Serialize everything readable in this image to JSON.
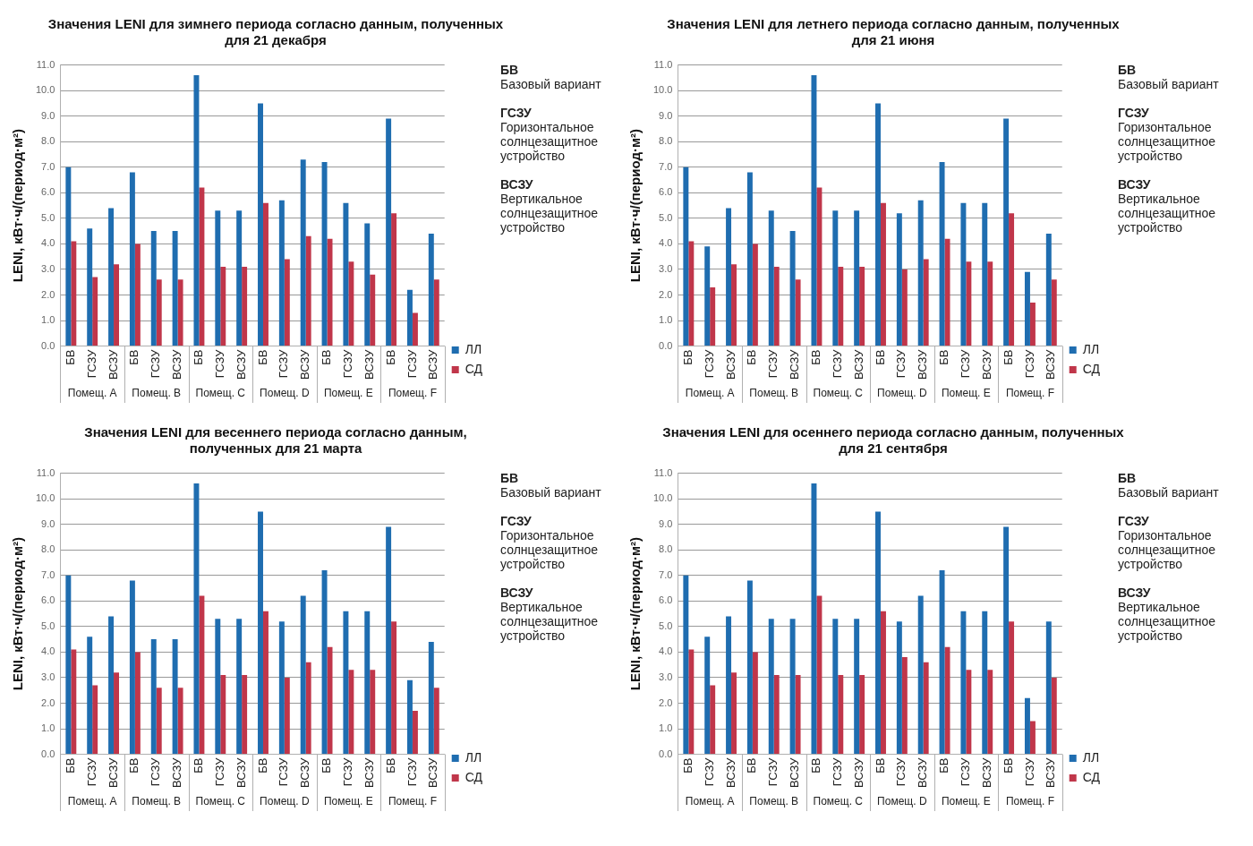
{
  "chart_data": [
    {
      "type": "bar",
      "title": "Значения LENI для зимнего периода согласно данным, полученных для 21 декабря",
      "ylabel": "LENI, кВт·ч/(период·м²)",
      "categories": [
        "БВ",
        "ГСЗУ",
        "ВСЗУ",
        "БВ",
        "ГСЗУ",
        "ВСЗУ",
        "БВ",
        "ГСЗУ",
        "ВСЗУ",
        "БВ",
        "ГСЗУ",
        "ВСЗУ",
        "БВ",
        "ГСЗУ",
        "ВСЗУ",
        "БВ",
        "ГСЗУ",
        "ВСЗУ"
      ],
      "series": [
        {
          "name": "ЛЛ",
          "color": "#1f6db0",
          "values": [
            7.0,
            4.6,
            5.4,
            6.8,
            4.5,
            4.5,
            10.6,
            5.3,
            5.3,
            9.5,
            5.7,
            7.3,
            7.2,
            5.6,
            4.8,
            8.9,
            2.2,
            4.4
          ]
        },
        {
          "name": "СД",
          "color": "#c0364a",
          "values": [
            4.1,
            2.7,
            3.2,
            4.0,
            2.6,
            2.6,
            6.2,
            3.1,
            3.1,
            5.6,
            3.4,
            4.3,
            4.2,
            3.3,
            2.8,
            5.2,
            1.3,
            2.6
          ]
        }
      ],
      "ylim": [
        0,
        11
      ],
      "yticks": [
        {
          "value": 0,
          "label": "0.0"
        },
        {
          "value": 1,
          "label": "1.0"
        },
        {
          "value": 2,
          "label": "2.0"
        },
        {
          "value": 3,
          "label": "3.0"
        },
        {
          "value": 4,
          "label": "4.0"
        },
        {
          "value": 5,
          "label": "5.0"
        },
        {
          "value": 6,
          "label": "6.0"
        },
        {
          "value": 7,
          "label": "7.0"
        },
        {
          "value": 8,
          "label": "8.0"
        },
        {
          "value": 9,
          "label": "9.0"
        },
        {
          "value": 10,
          "label": "10.0"
        },
        {
          "value": 11,
          "label": "11.0"
        }
      ],
      "grid": "y",
      "legend": "bottom right",
      "annotations": [
        "Помещ. A",
        "Помещ. B",
        "Помещ. C",
        "Помещ. D",
        "Помещ. E",
        "Помещ. F",
        "БВ\nБазовый вариант",
        "ГСЗУ\nГоризонтальное солнцезащитное устройство",
        "ВСЗУ\nВертикальное солнцезащитное устройство"
      ]
    },
    {
      "type": "bar",
      "title": "Значения LENI для летнего периода согласно данным, полученных для 21 июня",
      "ylabel": "LENI, кВт·ч/(период·м²)",
      "categories": [
        "БВ",
        "ГСЗУ",
        "ВСЗУ",
        "БВ",
        "ГСЗУ",
        "ВСЗУ",
        "БВ",
        "ГСЗУ",
        "ВСЗУ",
        "БВ",
        "ГСЗУ",
        "ВСЗУ",
        "БВ",
        "ГСЗУ",
        "ВСЗУ",
        "БВ",
        "ГСЗУ",
        "ВСЗУ"
      ],
      "series": [
        {
          "name": "ЛЛ",
          "color": "#1f6db0",
          "values": [
            7.0,
            3.9,
            5.4,
            6.8,
            5.3,
            4.5,
            10.6,
            5.3,
            5.3,
            9.5,
            5.2,
            5.7,
            7.2,
            5.6,
            5.6,
            8.9,
            2.9,
            4.4
          ]
        },
        {
          "name": "СД",
          "color": "#c0364a",
          "values": [
            4.1,
            2.3,
            3.2,
            4.0,
            3.1,
            2.6,
            6.2,
            3.1,
            3.1,
            5.6,
            3.0,
            3.4,
            4.2,
            3.3,
            3.3,
            5.2,
            1.7,
            2.6
          ]
        }
      ],
      "ylim": [
        0,
        11
      ],
      "yticks": [
        {
          "value": 0,
          "label": "0.0"
        },
        {
          "value": 1,
          "label": "1.0"
        },
        {
          "value": 2,
          "label": "2.0"
        },
        {
          "value": 3,
          "label": "3.0"
        },
        {
          "value": 4,
          "label": "4.0"
        },
        {
          "value": 5,
          "label": "5.0"
        },
        {
          "value": 6,
          "label": "6.0"
        },
        {
          "value": 7,
          "label": "7.0"
        },
        {
          "value": 8,
          "label": "8.0"
        },
        {
          "value": 9,
          "label": "9.0"
        },
        {
          "value": 10,
          "label": "10.0"
        },
        {
          "value": 11,
          "label": "11.0"
        }
      ],
      "grid": "y",
      "legend": "bottom right",
      "annotations": [
        "Помещ. A",
        "Помещ. B",
        "Помещ. C",
        "Помещ. D",
        "Помещ. E",
        "Помещ. F",
        "БВ\nБазовый вариант",
        "ГСЗУ\nГоризонтальное солнцезащитное устройство",
        "ВСЗУ\nВертикальное солнцезащитное устройство"
      ]
    },
    {
      "type": "bar",
      "title": "Значения LENI для весеннего периода согласно данным, полученных для 21 марта",
      "ylabel": "LENI, кВт·ч/(период·м²)",
      "categories": [
        "БВ",
        "ГСЗУ",
        "ВСЗУ",
        "БВ",
        "ГСЗУ",
        "ВСЗУ",
        "БВ",
        "ГСЗУ",
        "ВСЗУ",
        "БВ",
        "ГСЗУ",
        "ВСЗУ",
        "БВ",
        "ГСЗУ",
        "ВСЗУ",
        "БВ",
        "ГСЗУ",
        "ВСЗУ"
      ],
      "series": [
        {
          "name": "ЛЛ",
          "color": "#1f6db0",
          "values": [
            7.0,
            4.6,
            5.4,
            6.8,
            4.5,
            4.5,
            10.6,
            5.3,
            5.3,
            9.5,
            5.2,
            6.2,
            7.2,
            5.6,
            5.6,
            8.9,
            2.9,
            4.4
          ]
        },
        {
          "name": "СД",
          "color": "#c0364a",
          "values": [
            4.1,
            2.7,
            3.2,
            4.0,
            2.6,
            2.6,
            6.2,
            3.1,
            3.1,
            5.6,
            3.0,
            3.6,
            4.2,
            3.3,
            3.3,
            5.2,
            1.7,
            2.6
          ]
        }
      ],
      "ylim": [
        0,
        11
      ],
      "yticks": [
        {
          "value": 0,
          "label": "0.0"
        },
        {
          "value": 1,
          "label": "1.0"
        },
        {
          "value": 2,
          "label": "2.0"
        },
        {
          "value": 3,
          "label": "3.0"
        },
        {
          "value": 4,
          "label": "4.0"
        },
        {
          "value": 5,
          "label": "5.0"
        },
        {
          "value": 6,
          "label": "6.0"
        },
        {
          "value": 7,
          "label": "7.0"
        },
        {
          "value": 8,
          "label": "8.0"
        },
        {
          "value": 9,
          "label": "9.0"
        },
        {
          "value": 10,
          "label": "10.0"
        },
        {
          "value": 11,
          "label": "11.0"
        }
      ],
      "grid": "y",
      "legend": "bottom right",
      "annotations": [
        "Помещ. A",
        "Помещ. B",
        "Помещ. C",
        "Помещ. D",
        "Помещ. E",
        "Помещ. F",
        "БВ\nБазовый вариант",
        "ГСЗУ\nГоризонтальное солнцезащитное устройство",
        "ВСЗУ\nВертикальное солнцезащитное устройство"
      ]
    },
    {
      "type": "bar",
      "title": "Значения LENI для осеннего периода согласно данным, полученных для 21 сентября",
      "ylabel": "LENI, кВт·ч/(период·м²)",
      "categories": [
        "БВ",
        "ГСЗУ",
        "ВСЗУ",
        "БВ",
        "ГСЗУ",
        "ВСЗУ",
        "БВ",
        "ГСЗУ",
        "ВСЗУ",
        "БВ",
        "ГСЗУ",
        "ВСЗУ",
        "БВ",
        "ГСЗУ",
        "ВСЗУ",
        "БВ",
        "ГСЗУ",
        "ВСЗУ"
      ],
      "series": [
        {
          "name": "ЛЛ",
          "color": "#1f6db0",
          "values": [
            7.0,
            4.6,
            5.4,
            6.8,
            5.3,
            5.3,
            10.6,
            5.3,
            5.3,
            9.5,
            5.2,
            6.2,
            7.2,
            5.6,
            5.6,
            8.9,
            2.2,
            5.2
          ]
        },
        {
          "name": "СД",
          "color": "#c0364a",
          "values": [
            4.1,
            2.7,
            3.2,
            4.0,
            3.1,
            3.1,
            6.2,
            3.1,
            3.1,
            5.6,
            3.8,
            3.6,
            4.2,
            3.3,
            3.3,
            5.2,
            1.3,
            3.0
          ]
        }
      ],
      "ylim": [
        0,
        11
      ],
      "yticks": [
        {
          "value": 0,
          "label": "0.0"
        },
        {
          "value": 1,
          "label": "1.0"
        },
        {
          "value": 2,
          "label": "2.0"
        },
        {
          "value": 3,
          "label": "3.0"
        },
        {
          "value": 4,
          "label": "4.0"
        },
        {
          "value": 5,
          "label": "5.0"
        },
        {
          "value": 6,
          "label": "6.0"
        },
        {
          "value": 7,
          "label": "7.0"
        },
        {
          "value": 8,
          "label": "8.0"
        },
        {
          "value": 9,
          "label": "9.0"
        },
        {
          "value": 10,
          "label": "10.0"
        },
        {
          "value": 11,
          "label": "11.0"
        }
      ],
      "grid": "y",
      "legend": "bottom right",
      "annotations": [
        "Помещ. A",
        "Помещ. B",
        "Помещ. C",
        "Помещ. D",
        "Помещ. E",
        "Помещ. F",
        "БВ\nБазовый вариант",
        "ГСЗУ\nГоризонтальное солнцезащитное устройство",
        "ВСЗУ\nВертикальное солнцезащитное устройство"
      ]
    }
  ]
}
